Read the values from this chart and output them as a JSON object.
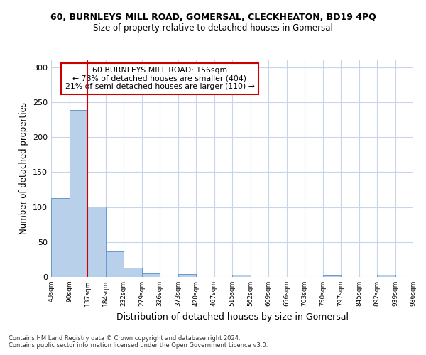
{
  "title_line1": "60, BURNLEYS MILL ROAD, GOMERSAL, CLECKHEATON, BD19 4PQ",
  "title_line2": "Size of property relative to detached houses in Gomersal",
  "xlabel": "Distribution of detached houses by size in Gomersal",
  "ylabel": "Number of detached properties",
  "footer_line1": "Contains HM Land Registry data © Crown copyright and database right 2024.",
  "footer_line2": "Contains public sector information licensed under the Open Government Licence v3.0.",
  "annotation_line1": "60 BURNLEYS MILL ROAD: 156sqm",
  "annotation_line2": "← 78% of detached houses are smaller (404)",
  "annotation_line3": "21% of semi-detached houses are larger (110) →",
  "bar_values": [
    113,
    239,
    101,
    37,
    13,
    5,
    0,
    4,
    0,
    0,
    3,
    0,
    0,
    0,
    0,
    2,
    0,
    0,
    3,
    0
  ],
  "categories": [
    "43sqm",
    "90sqm",
    "137sqm",
    "184sqm",
    "232sqm",
    "279sqm",
    "326sqm",
    "373sqm",
    "420sqm",
    "467sqm",
    "515sqm",
    "562sqm",
    "609sqm",
    "656sqm",
    "703sqm",
    "750sqm",
    "797sqm",
    "845sqm",
    "892sqm",
    "939sqm",
    "986sqm"
  ],
  "bar_color": "#b8d0ea",
  "bar_edge_color": "#6699cc",
  "vline_x_index": 2,
  "vline_color": "#cc0000",
  "grid_color": "#c8d4e8",
  "background_color": "#ffffff",
  "ylim": [
    0,
    310
  ],
  "yticks": [
    0,
    50,
    100,
    150,
    200,
    250,
    300
  ]
}
